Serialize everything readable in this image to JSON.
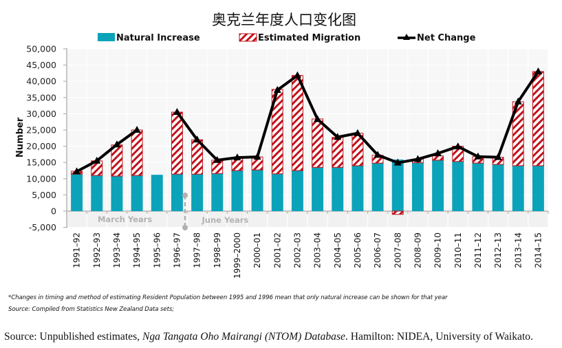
{
  "chart_data": {
    "type": "bar",
    "subtype": "stacked bar with line overlay",
    "title": "奥克兰年度人口变化图",
    "xlabel": "",
    "ylabel": "Number",
    "ylim": [
      -5000,
      50000
    ],
    "ytick_step": 5000,
    "ytick_labels": [
      "-5,000",
      "0",
      "5,000",
      "10,000",
      "15,000",
      "20,000",
      "25,000",
      "30,000",
      "35,000",
      "40,000",
      "45,000",
      "50,000"
    ],
    "grid": true,
    "legend_position": "top",
    "categories": [
      "1991–92",
      "1992–93",
      "1993–94",
      "1994–95",
      "1995–96",
      "1996–97",
      "1997–98",
      "1998–99",
      "1999–2000",
      "2000–01",
      "2001–02",
      "2002–03",
      "2003–04",
      "2004–05",
      "2005–06",
      "2006–07",
      "2007–08",
      "2008–09",
      "2009–10",
      "2010–11",
      "2011–12",
      "2012–13",
      "2013–14",
      "2014–15"
    ],
    "series": [
      {
        "name": "Natural Increase",
        "type": "bar",
        "color": "#0aa3b9",
        "values": [
          11400,
          11000,
          10800,
          11000,
          11200,
          11400,
          11400,
          11600,
          12500,
          12700,
          11500,
          12500,
          13500,
          13500,
          14000,
          14800,
          15900,
          14900,
          15700,
          15300,
          14800,
          14400,
          14000,
          14000
        ]
      },
      {
        "name": "Estimated Migration",
        "type": "bar",
        "pattern": "red diagonal hatch",
        "color": "#c0121c",
        "values": [
          900,
          4500,
          9600,
          14000,
          null,
          19100,
          10600,
          4100,
          4000,
          4000,
          26000,
          29300,
          14900,
          9200,
          10000,
          2400,
          -1000,
          1100,
          1300,
          4700,
          2000,
          2200,
          19700,
          29000
        ]
      },
      {
        "name": "Net Change",
        "type": "line",
        "marker": "triangle",
        "color": "#000000",
        "values": [
          12200,
          15500,
          20500,
          25000,
          null,
          30500,
          22000,
          15700,
          16500,
          16700,
          37300,
          41800,
          28300,
          22800,
          24000,
          17300,
          14900,
          16000,
          17800,
          19900,
          16800,
          16600,
          33700,
          43000
        ]
      }
    ],
    "annotations": [
      {
        "text": "March Years",
        "applies_to": "1991–92 to 1995–96"
      },
      {
        "text": "June Years",
        "applies_to": "1996–97 onward"
      }
    ]
  },
  "footnotes": {
    "note": "*Changes in timing and method of estimating Resident Population between 1995 and 1996 mean that only natural increase can be shown for that year",
    "compiled": "Source: Compiled from Statistics New Zealand Data sets;"
  },
  "source": {
    "prefix": "Source: Unpublished estimates, ",
    "italic": "Nga Tangata Oho Mairangi (NTOM) Database",
    "suffix": ". Hamilton: NIDEA, University of Waikato."
  }
}
